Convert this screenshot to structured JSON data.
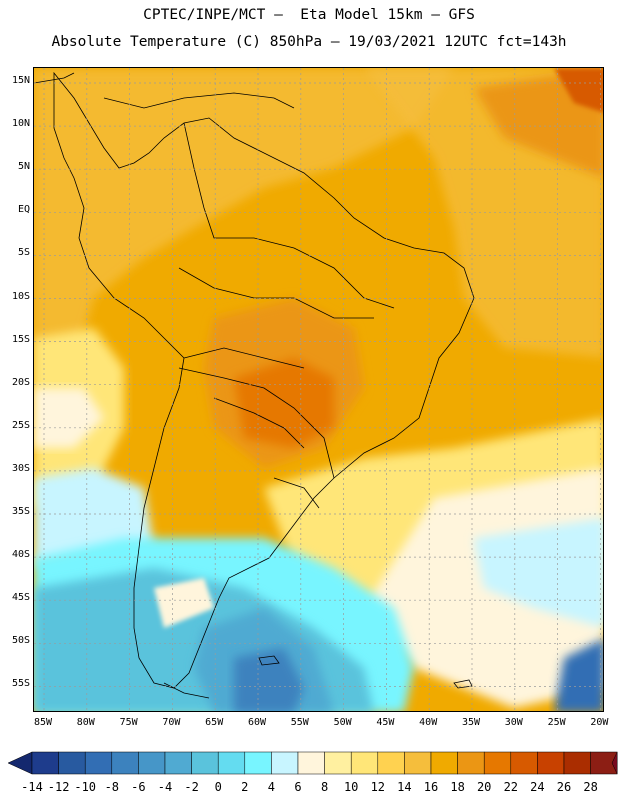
{
  "header": {
    "title_line1": "CPTEC/INPE/MCT –  Eta Model 15km – GFS",
    "title_line2": "Absolute Temperature (C) 850hPa – 19/03/2021 12UTC fct=143h"
  },
  "map": {
    "lat_labels": [
      "15N",
      "10N",
      "5N",
      "EQ",
      "5S",
      "10S",
      "15S",
      "20S",
      "25S",
      "30S",
      "35S",
      "40S",
      "45S",
      "50S",
      "55S"
    ],
    "lon_labels": [
      "85W",
      "80W",
      "75W",
      "70W",
      "65W",
      "60W",
      "55W",
      "50W",
      "45W",
      "40W",
      "35W",
      "30W",
      "25W",
      "20W"
    ]
  },
  "colorbar": {
    "labels": [
      "-14",
      "-12",
      "-10",
      "-8",
      "-6",
      "-4",
      "-2",
      "0",
      "2",
      "4",
      "6",
      "8",
      "10",
      "12",
      "14",
      "16",
      "18",
      "20",
      "22",
      "24",
      "26",
      "28"
    ],
    "colors": [
      "#1e3c8c",
      "#285aa0",
      "#326eb4",
      "#3c82be",
      "#4696c8",
      "#50aad2",
      "#5ac3dc",
      "#64dcf0",
      "#78f5ff",
      "#c8f5ff",
      "#fff5dc",
      "#fff0a0",
      "#ffe678",
      "#ffd250",
      "#f5be3c",
      "#f0aa00",
      "#eb9614",
      "#e67800",
      "#d75a00",
      "#c84100",
      "#aa2d00",
      "#8c1e14"
    ],
    "under_color": "#14286e",
    "over_color": "#780a1e"
  }
}
